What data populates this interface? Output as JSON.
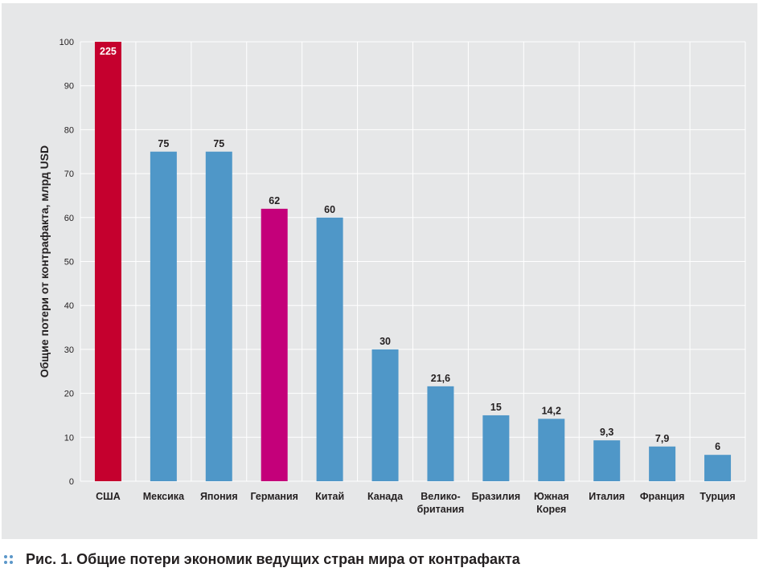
{
  "caption": "Рис. 1. Общие потери экономик ведущих стран мира от контрафакта",
  "chart_data": {
    "type": "bar",
    "title": "",
    "xlabel": "",
    "ylabel": "Общие потери от контрафакта, млрд USD",
    "ylim": [
      0,
      100
    ],
    "yticks": [
      "0",
      "10",
      "20",
      "30",
      "40",
      "50",
      "60",
      "70",
      "80",
      "90",
      "100"
    ],
    "grid": true,
    "categories": [
      [
        "США"
      ],
      [
        "Мексика"
      ],
      [
        "Япония"
      ],
      [
        "Германия"
      ],
      [
        "Китай"
      ],
      [
        "Канада"
      ],
      [
        "Велико-",
        "британия"
      ],
      [
        "Бразилия"
      ],
      [
        "Южная",
        "Корея"
      ],
      [
        "Италия"
      ],
      [
        "Франция"
      ],
      [
        "Турция"
      ]
    ],
    "values": [
      225,
      75,
      75,
      62,
      60,
      30,
      21.6,
      15,
      14.2,
      9.3,
      7.9,
      6
    ],
    "value_labels": [
      "225",
      "75",
      "75",
      "62",
      "60",
      "30",
      "21,6",
      "15",
      "14,2",
      "9,3",
      "7,9",
      "6"
    ],
    "bar_colors": [
      "#c5002e",
      "#4f97c8",
      "#4f97c8",
      "#c4007a",
      "#4f97c8",
      "#4f97c8",
      "#4f97c8",
      "#4f97c8",
      "#4f97c8",
      "#4f97c8",
      "#4f97c8",
      "#4f97c8"
    ],
    "grid_color": "#ffffff",
    "background": "#e6e7e8"
  }
}
